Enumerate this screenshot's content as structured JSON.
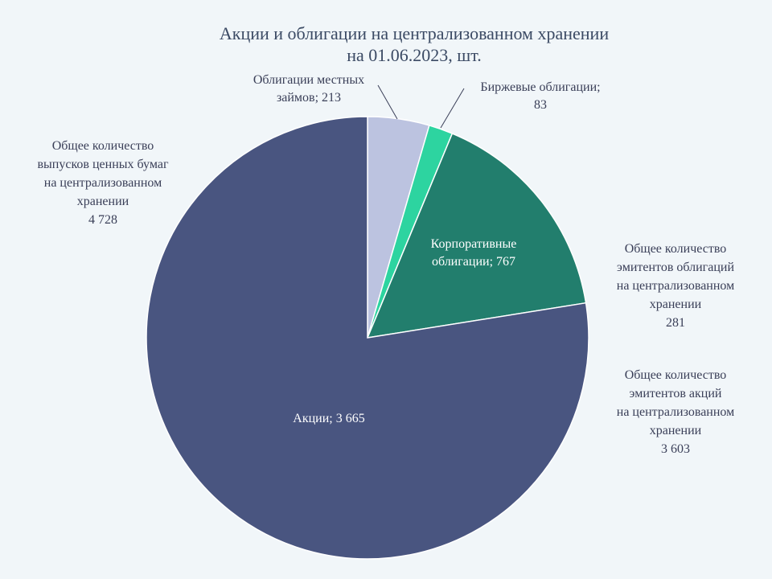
{
  "chart_data": {
    "type": "pie",
    "title_line1": "Акции и облигации на централизованном хранении",
    "title_line2": "на 01.06.2023, шт.",
    "slices": [
      {
        "label": "Облигации местных займов",
        "value": 213,
        "value_text": "213",
        "color": "#bcc3e0"
      },
      {
        "label": "Биржевые облигации",
        "value": 83,
        "value_text": "83",
        "color": "#2dd4a0"
      },
      {
        "label": "Корпоративные облигации",
        "value": 767,
        "value_text": "767",
        "color": "#227e6d"
      },
      {
        "label": "Акции",
        "value": 3665,
        "value_text": "3 665",
        "color": "#495580"
      }
    ],
    "slice_labels": {
      "local_l1": "Облигации местных",
      "local_l2": "займов; 213",
      "exchange_l1": "Биржевые облигации;",
      "exchange_l2": "83",
      "corporate_l1": "Корпоративные",
      "corporate_l2": "облигации; 767",
      "shares": "Акции; 3 665"
    }
  },
  "notes": {
    "total_issues": {
      "lines": [
        "Общее количество",
        "выпусков ценных бумаг",
        "на централизованном",
        "хранении"
      ],
      "value": "4 728"
    },
    "bond_issuers": {
      "lines": [
        "Общее количество",
        "эмитентов облигаций",
        "на централизованном",
        "хранении"
      ],
      "value": "281"
    },
    "share_issuers": {
      "lines": [
        "Общее количество",
        "эмитентов акций",
        "на централизованном",
        "хранении"
      ],
      "value": "3 603"
    }
  }
}
